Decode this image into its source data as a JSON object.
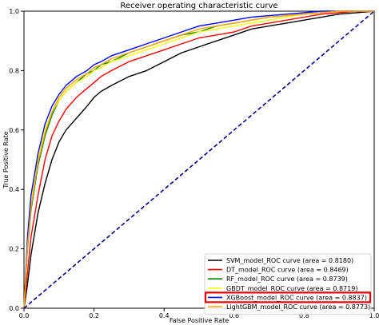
{
  "chart_data": {
    "type": "line",
    "title": "Receiver operating characteristic curve",
    "xlabel": "False Positive Rate",
    "ylabel": "True Positive Rate",
    "xlim": [
      0,
      1
    ],
    "ylim": [
      0,
      1
    ],
    "x_ticks": [
      "0.0",
      "0.2",
      "0.4",
      "0.6",
      "0.8",
      "1.0"
    ],
    "y_ticks": [
      "0.0",
      "0.2",
      "0.4",
      "0.6",
      "0.8",
      "1.0"
    ],
    "grid": false,
    "legend_position": "lower-right",
    "highlighted_series": "XGBoost_model_ROC curve",
    "highlight_color": "#e00000",
    "reference_line": {
      "x": [
        0,
        1
      ],
      "y": [
        0,
        1
      ],
      "color": "#00008b",
      "style": "dashed"
    },
    "series": [
      {
        "name": "SVM_model_ROC curve (area = 0.8180)",
        "color": "#000000",
        "x": [
          0,
          0.01,
          0.02,
          0.04,
          0.06,
          0.08,
          0.1,
          0.12,
          0.15,
          0.18,
          0.2,
          0.22,
          0.25,
          0.3,
          0.35,
          0.4,
          0.45,
          0.5,
          0.55,
          0.6,
          0.65,
          0.7,
          0.75,
          0.8,
          0.85,
          0.9,
          0.95,
          1.0
        ],
        "y": [
          0,
          0.08,
          0.18,
          0.32,
          0.42,
          0.5,
          0.56,
          0.6,
          0.64,
          0.68,
          0.71,
          0.73,
          0.75,
          0.78,
          0.8,
          0.83,
          0.86,
          0.88,
          0.9,
          0.92,
          0.94,
          0.95,
          0.96,
          0.97,
          0.98,
          0.99,
          0.995,
          1.0
        ]
      },
      {
        "name": "DT_model_ROC curve (area = 0.8469)",
        "color": "#ff0000",
        "x": [
          0,
          0.01,
          0.02,
          0.04,
          0.06,
          0.08,
          0.1,
          0.12,
          0.15,
          0.18,
          0.2,
          0.22,
          0.25,
          0.3,
          0.35,
          0.4,
          0.45,
          0.5,
          0.55,
          0.6,
          0.65,
          0.7,
          0.75,
          0.8,
          0.85,
          0.9,
          0.95,
          1.0
        ],
        "y": [
          0,
          0.12,
          0.24,
          0.38,
          0.5,
          0.58,
          0.63,
          0.67,
          0.71,
          0.74,
          0.76,
          0.78,
          0.8,
          0.83,
          0.85,
          0.87,
          0.89,
          0.91,
          0.92,
          0.93,
          0.95,
          0.96,
          0.97,
          0.98,
          0.99,
          0.995,
          1.0,
          1.0
        ]
      },
      {
        "name": "RF_model_ROC curve (area = 0.8739)",
        "color": "#008000",
        "x": [
          0,
          0.01,
          0.02,
          0.04,
          0.06,
          0.08,
          0.1,
          0.12,
          0.15,
          0.18,
          0.2,
          0.22,
          0.25,
          0.3,
          0.35,
          0.4,
          0.45,
          0.5,
          0.55,
          0.6,
          0.65,
          0.7,
          0.75,
          0.8,
          0.85,
          0.9,
          0.95,
          1.0
        ],
        "y": [
          0,
          0.2,
          0.33,
          0.48,
          0.58,
          0.65,
          0.7,
          0.73,
          0.76,
          0.79,
          0.8,
          0.82,
          0.83,
          0.86,
          0.88,
          0.9,
          0.92,
          0.93,
          0.95,
          0.96,
          0.97,
          0.98,
          0.985,
          0.99,
          0.995,
          1.0,
          1.0,
          1.0
        ]
      },
      {
        "name": "GBDT_model_ROC curve (area = 0.8719)",
        "color": "#ffff00",
        "x": [
          0,
          0.01,
          0.02,
          0.04,
          0.06,
          0.08,
          0.1,
          0.12,
          0.15,
          0.18,
          0.2,
          0.22,
          0.25,
          0.3,
          0.35,
          0.4,
          0.45,
          0.5,
          0.55,
          0.6,
          0.65,
          0.7,
          0.75,
          0.8,
          0.85,
          0.9,
          0.95,
          1.0
        ],
        "y": [
          0,
          0.22,
          0.35,
          0.5,
          0.6,
          0.66,
          0.7,
          0.73,
          0.76,
          0.78,
          0.8,
          0.81,
          0.83,
          0.85,
          0.87,
          0.89,
          0.91,
          0.93,
          0.94,
          0.95,
          0.96,
          0.97,
          0.98,
          0.99,
          0.995,
          1.0,
          1.0,
          1.0
        ]
      },
      {
        "name": "XGBoost_model_ROC curve (area = 0.8837)",
        "color": "#0000ff",
        "x": [
          0,
          0.01,
          0.02,
          0.04,
          0.06,
          0.08,
          0.1,
          0.12,
          0.15,
          0.18,
          0.2,
          0.22,
          0.25,
          0.3,
          0.35,
          0.4,
          0.45,
          0.5,
          0.55,
          0.6,
          0.65,
          0.7,
          0.75,
          0.8,
          0.85,
          0.9,
          0.95,
          1.0
        ],
        "y": [
          0,
          0.24,
          0.38,
          0.52,
          0.62,
          0.68,
          0.72,
          0.75,
          0.78,
          0.8,
          0.82,
          0.83,
          0.85,
          0.87,
          0.89,
          0.91,
          0.93,
          0.95,
          0.96,
          0.97,
          0.98,
          0.985,
          0.99,
          0.995,
          1.0,
          1.0,
          1.0,
          1.0
        ]
      },
      {
        "name": "LightGBM_model_ROC curve (area = 0.8773)",
        "color": "#ffa500",
        "x": [
          0,
          0.01,
          0.02,
          0.04,
          0.06,
          0.08,
          0.1,
          0.12,
          0.15,
          0.18,
          0.2,
          0.22,
          0.25,
          0.3,
          0.35,
          0.4,
          0.45,
          0.5,
          0.55,
          0.6,
          0.65,
          0.7,
          0.75,
          0.8,
          0.85,
          0.9,
          0.95,
          1.0
        ],
        "y": [
          0,
          0.21,
          0.34,
          0.49,
          0.59,
          0.66,
          0.71,
          0.74,
          0.77,
          0.79,
          0.81,
          0.82,
          0.84,
          0.86,
          0.88,
          0.9,
          0.92,
          0.94,
          0.95,
          0.96,
          0.97,
          0.98,
          0.985,
          0.99,
          0.995,
          1.0,
          1.0,
          1.0
        ]
      }
    ]
  }
}
